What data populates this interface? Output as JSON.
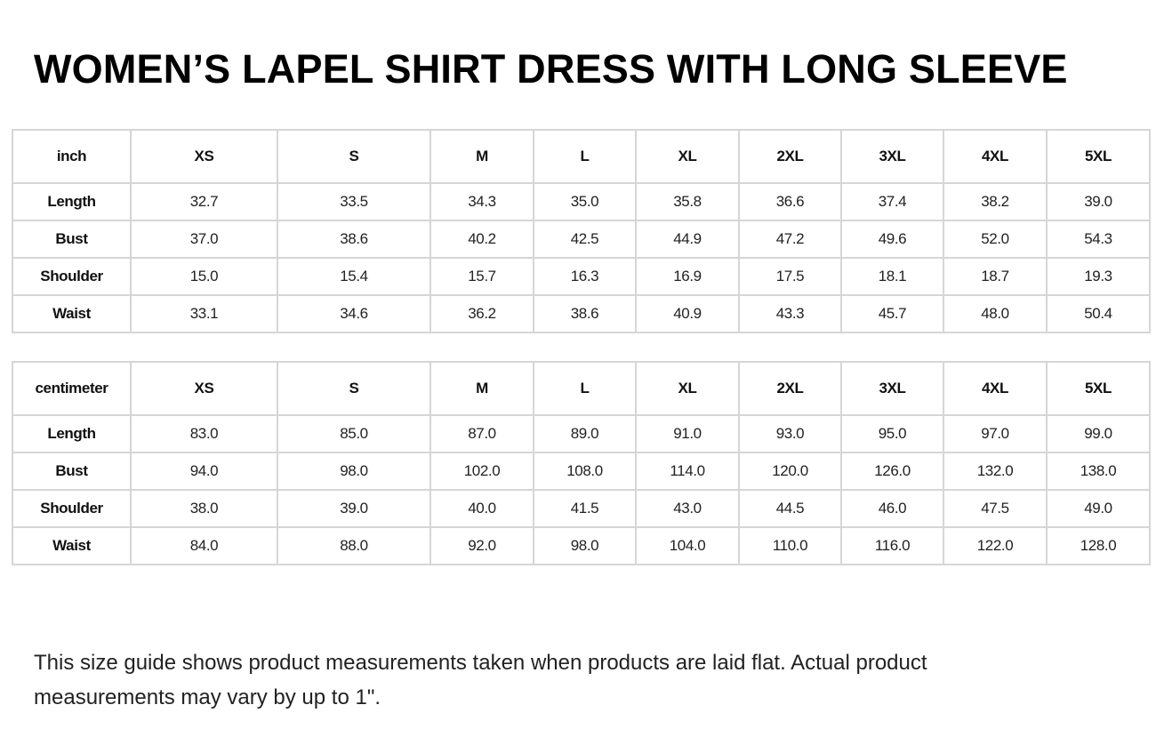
{
  "title": "WOMEN’S LAPEL SHIRT DRESS WITH LONG SLEEVE",
  "tables": [
    {
      "unit": "inch",
      "sizes": [
        "XS",
        "S",
        "M",
        "L",
        "XL",
        "2XL",
        "3XL",
        "4XL",
        "5XL"
      ],
      "rows": [
        {
          "label": "Length",
          "values": [
            "32.7",
            "33.5",
            "34.3",
            "35.0",
            "35.8",
            "36.6",
            "37.4",
            "38.2",
            "39.0"
          ]
        },
        {
          "label": "Bust",
          "values": [
            "37.0",
            "38.6",
            "40.2",
            "42.5",
            "44.9",
            "47.2",
            "49.6",
            "52.0",
            "54.3"
          ]
        },
        {
          "label": "Shoulder",
          "values": [
            "15.0",
            "15.4",
            "15.7",
            "16.3",
            "16.9",
            "17.5",
            "18.1",
            "18.7",
            "19.3"
          ]
        },
        {
          "label": "Waist",
          "values": [
            "33.1",
            "34.6",
            "36.2",
            "38.6",
            "40.9",
            "43.3",
            "45.7",
            "48.0",
            "50.4"
          ]
        }
      ]
    },
    {
      "unit": "centimeter",
      "sizes": [
        "XS",
        "S",
        "M",
        "L",
        "XL",
        "2XL",
        "3XL",
        "4XL",
        "5XL"
      ],
      "rows": [
        {
          "label": "Length",
          "values": [
            "83.0",
            "85.0",
            "87.0",
            "89.0",
            "91.0",
            "93.0",
            "95.0",
            "97.0",
            "99.0"
          ]
        },
        {
          "label": "Bust",
          "values": [
            "94.0",
            "98.0",
            "102.0",
            "108.0",
            "114.0",
            "120.0",
            "126.0",
            "132.0",
            "138.0"
          ]
        },
        {
          "label": "Shoulder",
          "values": [
            "38.0",
            "39.0",
            "40.0",
            "41.5",
            "43.0",
            "44.5",
            "46.0",
            "47.5",
            "49.0"
          ]
        },
        {
          "label": "Waist",
          "values": [
            "84.0",
            "88.0",
            "92.0",
            "98.0",
            "104.0",
            "110.0",
            "116.0",
            "122.0",
            "128.0"
          ]
        }
      ]
    }
  ],
  "note": "This size guide shows product measurements taken when products are laid flat. Actual product measurements may vary by up to 1\"."
}
